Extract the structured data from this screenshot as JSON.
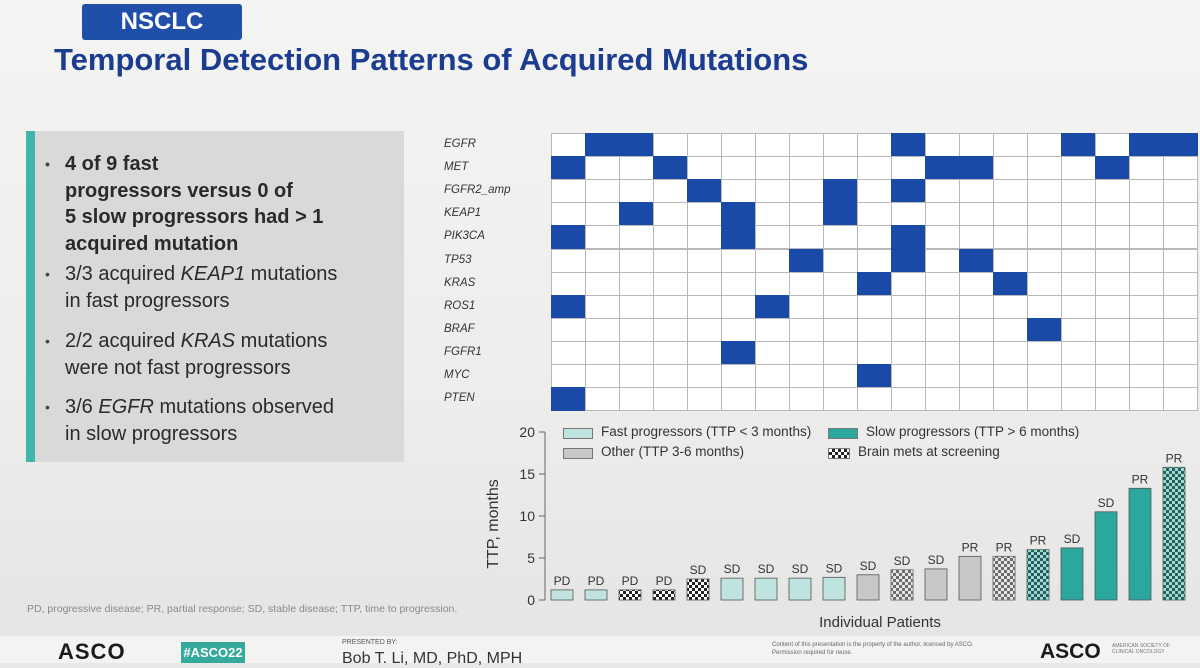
{
  "slide": {
    "tag": "NSCLC",
    "title": "Temporal Detection Patterns of Acquired Mutations"
  },
  "bullets": [
    {
      "lines": [
        "4 of 9 fast",
        "progressors versus 0 of",
        "5 slow progressors had > 1",
        "acquired mutation"
      ],
      "bold": true
    },
    {
      "lines": [
        "3/3 acquired |KEAP1| mutations",
        "in fast progressors"
      ],
      "bold": false
    },
    {
      "lines": [
        "2/2 acquired |KRAS| mutations",
        "were not fast progressors"
      ],
      "bold": false
    },
    {
      "lines": [
        "3/6 |EGFR| mutations observed",
        "in slow progressors"
      ],
      "bold": false
    }
  ],
  "heatmap": {
    "genes": [
      "EGFR",
      "MET",
      "FGFR2_amp",
      "KEAP1",
      "PIK3CA",
      "TP53",
      "KRAS",
      "ROS1",
      "BRAF",
      "FGFR1",
      "MYC",
      "PTEN"
    ],
    "patients": 19,
    "matrix": [
      [
        0,
        1,
        1,
        0,
        0,
        0,
        0,
        0,
        0,
        0,
        1,
        0,
        0,
        0,
        0,
        1,
        0,
        1,
        1
      ],
      [
        1,
        0,
        0,
        1,
        0,
        0,
        0,
        0,
        0,
        0,
        0,
        1,
        1,
        0,
        0,
        0,
        1,
        0,
        0
      ],
      [
        0,
        0,
        0,
        0,
        1,
        0,
        0,
        0,
        1,
        0,
        1,
        0,
        0,
        0,
        0,
        0,
        0,
        0,
        0
      ],
      [
        0,
        0,
        1,
        0,
        0,
        1,
        0,
        0,
        1,
        0,
        0,
        0,
        0,
        0,
        0,
        0,
        0,
        0,
        0
      ],
      [
        1,
        0,
        0,
        0,
        0,
        1,
        0,
        0,
        0,
        0,
        1,
        0,
        0,
        0,
        0,
        0,
        0,
        0,
        0
      ],
      [
        0,
        0,
        0,
        0,
        0,
        0,
        0,
        1,
        0,
        0,
        1,
        0,
        1,
        0,
        0,
        0,
        0,
        0,
        0
      ],
      [
        0,
        0,
        0,
        0,
        0,
        0,
        0,
        0,
        0,
        1,
        0,
        0,
        0,
        1,
        0,
        0,
        0,
        0,
        0
      ],
      [
        1,
        0,
        0,
        0,
        0,
        0,
        1,
        0,
        0,
        0,
        0,
        0,
        0,
        0,
        0,
        0,
        0,
        0,
        0
      ],
      [
        0,
        0,
        0,
        0,
        0,
        0,
        0,
        0,
        0,
        0,
        0,
        0,
        0,
        0,
        1,
        0,
        0,
        0,
        0
      ],
      [
        0,
        0,
        0,
        0,
        0,
        1,
        0,
        0,
        0,
        0,
        0,
        0,
        0,
        0,
        0,
        0,
        0,
        0,
        0
      ],
      [
        0,
        0,
        0,
        0,
        0,
        0,
        0,
        0,
        0,
        1,
        0,
        0,
        0,
        0,
        0,
        0,
        0,
        0,
        0
      ],
      [
        1,
        0,
        0,
        0,
        0,
        0,
        0,
        0,
        0,
        0,
        0,
        0,
        0,
        0,
        0,
        0,
        0,
        0,
        0
      ]
    ]
  },
  "colors": {
    "mutation": "#1a4aa8",
    "fast": "#bfe3df",
    "other": "#c8c8c8",
    "slow": "#2aa89e",
    "brain_mets_dark": "#222222"
  },
  "chart_data": {
    "type": "bar",
    "ylabel": "TTP, months",
    "xlabel": "Individual Patients",
    "ylim": [
      0,
      20
    ],
    "yticks": [
      0,
      5,
      10,
      15,
      20
    ],
    "values": [
      1.2,
      1.2,
      1.2,
      1.2,
      2.5,
      2.6,
      2.6,
      2.6,
      2.7,
      3.0,
      3.6,
      3.7,
      5.2,
      5.2,
      6.0,
      6.2,
      10.5,
      13.3,
      15.8
    ],
    "labels": [
      "PD",
      "PD",
      "PD",
      "PD",
      "SD",
      "SD",
      "SD",
      "SD",
      "SD",
      "SD",
      "SD",
      "SD",
      "PR",
      "PR",
      "PR",
      "SD",
      "SD",
      "PR",
      "PR"
    ],
    "groups": [
      "fast",
      "fast",
      "fast",
      "fast",
      "fast",
      "fast",
      "fast",
      "fast",
      "fast",
      "other",
      "other",
      "other",
      "other",
      "other",
      "slow",
      "slow",
      "slow",
      "slow",
      "slow"
    ],
    "brain_mets": [
      false,
      false,
      true,
      true,
      true,
      false,
      false,
      false,
      false,
      false,
      true,
      false,
      false,
      true,
      true,
      false,
      false,
      false,
      true
    ],
    "legend": [
      {
        "key": "fast",
        "label": "Fast progressors (TTP < 3 months)"
      },
      {
        "key": "slow",
        "label": "Slow progressors (TTP > 6 months)"
      },
      {
        "key": "other",
        "label": "Other (TTP 3-6 months)"
      },
      {
        "key": "brain",
        "label": "Brain mets at screening"
      }
    ]
  },
  "footnote": "PD, progressive disease; PR, partial response; SD, stable disease; TTP, time to progression.",
  "footer": {
    "logo": "ASCO",
    "hashtag": "#ASCO22",
    "presented_by": "PRESENTED BY:",
    "presenter": "Bob T. Li, MD, PhD, MPH",
    "copyright": "Content of this presentation is the property of the author, licensed by ASCO. Permission required for reuse.",
    "asco_right": "ASCO",
    "asco_sub": "AMERICAN SOCIETY OF CLINICAL ONCOLOGY"
  }
}
